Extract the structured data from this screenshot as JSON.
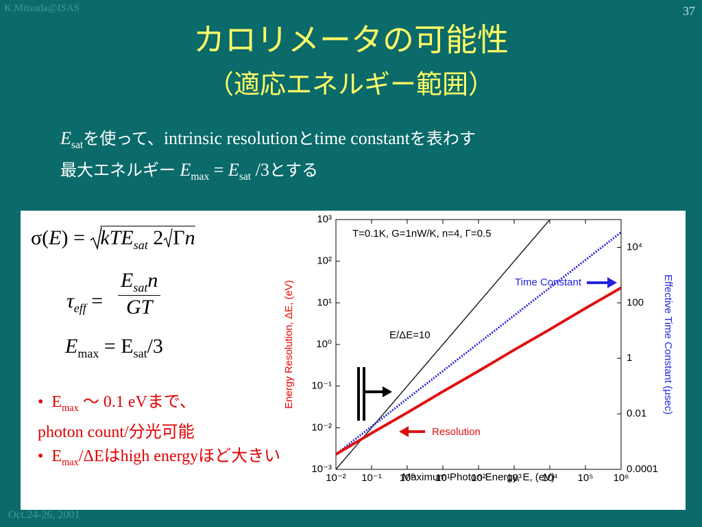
{
  "header": {
    "credit": "K.Mitsuda@ISAS",
    "page": "37",
    "title": "カロリメータの可能性",
    "subtitle": "（適応エネルギー範囲）"
  },
  "intro": {
    "line1": [
      "E",
      "sat",
      "を使って、",
      "intrinsic resolution",
      "と",
      "time constant",
      "を表わす"
    ],
    "line2": [
      "最大エネルギー",
      "E",
      "max",
      " = ",
      "E",
      "sat",
      " /3",
      "とする"
    ]
  },
  "formulas": {
    "eq1": [
      "σ(",
      "E",
      ") =",
      "kTE",
      "sat",
      "2",
      "Γ",
      "n"
    ],
    "eq2": [
      "τ",
      "eff",
      "=",
      "E",
      "sat",
      "n",
      "GT"
    ],
    "eq3": [
      "E",
      "max",
      "= E",
      "sat",
      "/3"
    ]
  },
  "bullets": [
    [
      "E",
      "max",
      " ～ 0.1 eV",
      "まで、",
      "photon count/",
      "分光可能"
    ],
    [
      "E",
      "max",
      "/ΔE",
      "は",
      "high energy",
      "ほど大きい"
    ]
  ],
  "footer": "Oct.24-26, 2001",
  "chart_data": {
    "type": "line",
    "log": true,
    "note": "T=0.1K, G=1nW/K, n=4, Γ=0.5",
    "xlabel": "Maximum Photon Energy, E, (eV)",
    "ylabel": "Energy Resolution, ΔE, (eV)",
    "y2label": "Effective Time Constant (μsec)",
    "xlim": [
      0.01,
      1000000
    ],
    "ylim": [
      0.001,
      1000
    ],
    "y2lim": [
      0.0001,
      100000
    ],
    "xticks": [
      {
        "value": 0.01,
        "label": "10⁻²"
      },
      {
        "value": 0.1,
        "label": "10⁻¹"
      },
      {
        "value": 1,
        "label": "10⁰"
      },
      {
        "value": 10,
        "label": "10¹"
      },
      {
        "value": 100,
        "label": "10²"
      },
      {
        "value": 1000,
        "label": "10³"
      },
      {
        "value": 10000,
        "label": "10⁴"
      },
      {
        "value": 100000,
        "label": "10⁵"
      },
      {
        "value": 1000000,
        "label": "10⁶"
      }
    ],
    "yticks": [
      {
        "value": 0.001,
        "label": "10⁻³"
      },
      {
        "value": 0.01,
        "label": "10⁻²"
      },
      {
        "value": 0.1,
        "label": "10⁻¹"
      },
      {
        "value": 1,
        "label": "10⁰"
      },
      {
        "value": 10,
        "label": "10¹"
      },
      {
        "value": 100,
        "label": "10²"
      },
      {
        "value": 1000,
        "label": "10³"
      }
    ],
    "y2ticks": [
      0.0001,
      0.01,
      1,
      100,
      {
        "value": 10000,
        "label": "10⁴"
      }
    ],
    "series": [
      {
        "name": "E/ΔE=10",
        "color": "#222222",
        "line_style": "solid",
        "x": [
          0.01,
          0.1,
          1,
          10,
          100,
          1000,
          10000
        ],
        "values": [
          0.001,
          0.01,
          0.1,
          1,
          10,
          100,
          1000
        ]
      },
      {
        "name": "Time Constant",
        "color": "#2222dd",
        "line_style": "dotted",
        "axis": "y2",
        "x": [
          0.01,
          0.1,
          1,
          10,
          100,
          1000,
          10000,
          100000,
          1000000
        ],
        "values": [
          0.00035,
          0.0035,
          0.035,
          0.35,
          3.5,
          35,
          350,
          3500,
          35000
        ]
      },
      {
        "name": "Resolution",
        "color": "#dd1111",
        "line_style": "solid",
        "x": [
          0.01,
          0.1,
          1,
          10,
          100,
          1000,
          10000,
          100000,
          1000000
        ],
        "values": [
          0.0023,
          0.0074,
          0.023,
          0.074,
          0.23,
          0.74,
          2.3,
          7.4,
          23
        ]
      }
    ]
  }
}
